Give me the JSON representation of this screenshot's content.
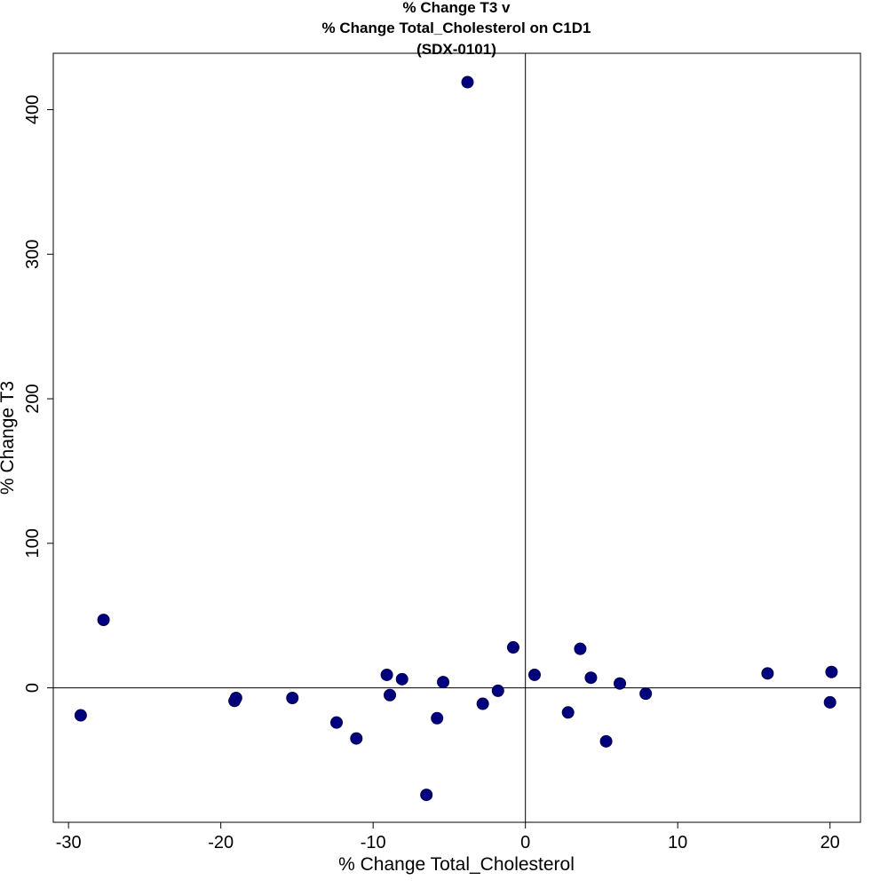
{
  "chart_data": {
    "type": "scatter",
    "title_lines": [
      "% Change T3 v",
      "% Change Total_Cholesterol on C1D1",
      "(SDX-0101)"
    ],
    "xlabel": "% Change Total_Cholesterol",
    "ylabel": "% Change T3",
    "xlim": [
      -31,
      22
    ],
    "ylim": [
      -93,
      439
    ],
    "xticks": [
      -30,
      -20,
      -10,
      0,
      10,
      20
    ],
    "yticks": [
      0,
      100,
      200,
      300,
      400
    ],
    "reference_lines": {
      "x": 0,
      "y": 0
    },
    "grid": false,
    "marker_color": "#00007f",
    "points": [
      {
        "x": -29.2,
        "y": -19
      },
      {
        "x": -27.7,
        "y": 47
      },
      {
        "x": -19.1,
        "y": -9
      },
      {
        "x": -19.0,
        "y": -7
      },
      {
        "x": -15.3,
        "y": -7
      },
      {
        "x": -12.4,
        "y": -24
      },
      {
        "x": -11.1,
        "y": -35
      },
      {
        "x": -9.1,
        "y": 9
      },
      {
        "x": -8.9,
        "y": -5
      },
      {
        "x": -8.1,
        "y": 6
      },
      {
        "x": -6.5,
        "y": -74
      },
      {
        "x": -5.8,
        "y": -21
      },
      {
        "x": -5.4,
        "y": 4
      },
      {
        "x": -3.8,
        "y": 419
      },
      {
        "x": -2.8,
        "y": -11
      },
      {
        "x": -1.8,
        "y": -2
      },
      {
        "x": -0.8,
        "y": 28
      },
      {
        "x": 0.6,
        "y": 9
      },
      {
        "x": 2.8,
        "y": -17
      },
      {
        "x": 3.6,
        "y": 27
      },
      {
        "x": 4.3,
        "y": 7
      },
      {
        "x": 5.3,
        "y": -37
      },
      {
        "x": 6.2,
        "y": 3
      },
      {
        "x": 7.9,
        "y": -4
      },
      {
        "x": 15.9,
        "y": 10
      },
      {
        "x": 20.0,
        "y": -10
      },
      {
        "x": 20.1,
        "y": 11
      }
    ]
  }
}
